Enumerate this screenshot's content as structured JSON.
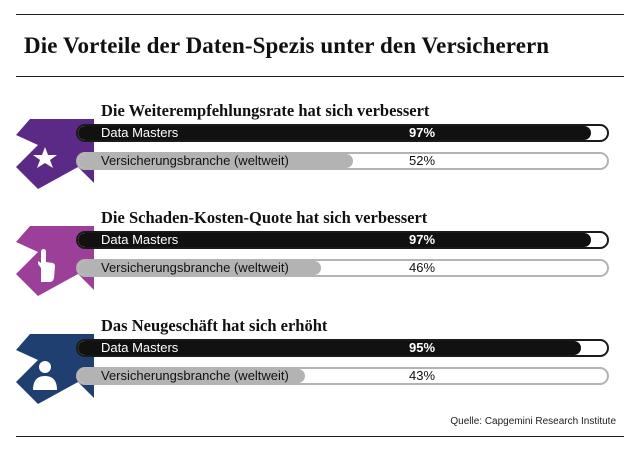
{
  "title": "Die Vorteile der Daten-Spezis unter den Versicherern",
  "source": "Quelle: Capgemini Research Institute",
  "colors": {
    "arrow1": "#5b2a86",
    "arrow2": "#9b3f98",
    "arrow3": "#1e3f6f",
    "dm_bar": "#111111",
    "industry_bar": "#b3b3b3"
  },
  "chart_data": {
    "type": "bar",
    "orientation": "horizontal",
    "unit": "%",
    "xlim": [
      0,
      100
    ],
    "groups": [
      {
        "title": "Die Weiterempfehlungsrate hat sich verbessert",
        "icon": "star-icon",
        "bars": [
          {
            "label": "Data Masters",
            "value": 97,
            "value_label": "97%"
          },
          {
            "label": "Versicherungsbranche (weltweit)",
            "value": 52,
            "value_label": "52%"
          }
        ]
      },
      {
        "title": "Die Schaden-Kosten-Quote hat sich verbessert",
        "icon": "hand-pointer-icon",
        "bars": [
          {
            "label": "Data Masters",
            "value": 97,
            "value_label": "97%"
          },
          {
            "label": "Versicherungsbranche (weltweit)",
            "value": 46,
            "value_label": "46%"
          }
        ]
      },
      {
        "title": "Das Neugeschäft hat sich erhöht",
        "icon": "person-icon",
        "bars": [
          {
            "label": "Data Masters",
            "value": 95,
            "value_label": "95%"
          },
          {
            "label": "Versicherungsbranche (weltweit)",
            "value": 43,
            "value_label": "43%"
          }
        ]
      }
    ]
  }
}
